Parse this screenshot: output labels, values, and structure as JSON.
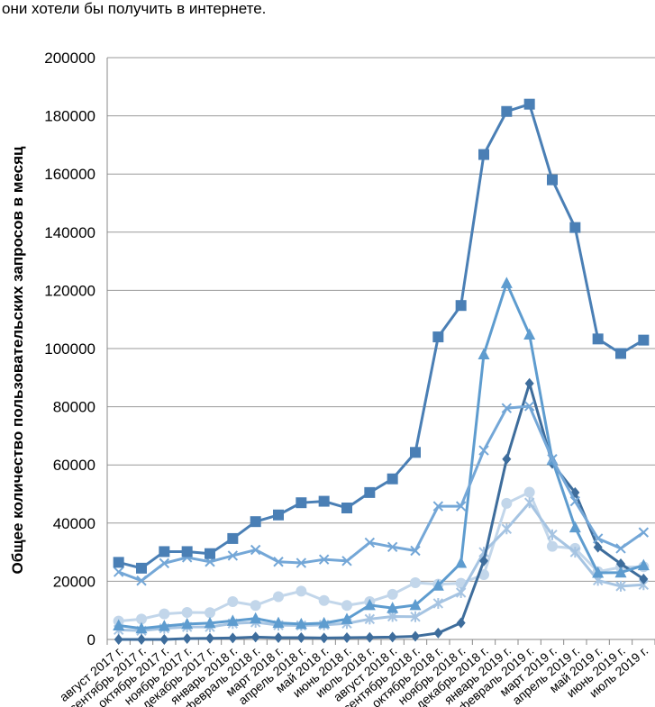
{
  "intro_text": "они хотели бы получить в интернете.",
  "chart_data": {
    "type": "line",
    "ylabel": "Общее количество пользовательских запросов в месяц",
    "xlabel": "",
    "ylim": [
      0,
      200000
    ],
    "yticks": [
      "0",
      "20000",
      "40000",
      "60000",
      "80000",
      "100000",
      "120000",
      "140000",
      "160000",
      "180000",
      "200000"
    ],
    "grid": "horizontal",
    "legend": "none",
    "categories": [
      "август 2017 г.",
      "сентябрь 2017 г.",
      "октябрь 2017 г.",
      "ноябрь 2017 г.",
      "декабрь 2017 г.",
      "январь 2018 г.",
      "февраль 2018 г.",
      "март 2018 г.",
      "апрель 2018 г.",
      "май 2018 г.",
      "июнь 2018 г.",
      "июль 2018 г.",
      "август 2018 г.",
      "сентябрь 2018 г.",
      "октябрь 2018 г.",
      "ноябрь 2018 г.",
      "декабрь 2018 г.",
      "январь 2019 г.",
      "февраль 2019 г.",
      "март 2019 г.",
      "апрель 2019 г.",
      "май 2019 г.",
      "июнь 2019 г.",
      "июль 2019 г."
    ],
    "series": [
      {
        "marker": "square",
        "color": "#4a7fb5",
        "values": [
          26500,
          24500,
          30200,
          30200,
          29500,
          34700,
          40500,
          42800,
          47000,
          47500,
          45200,
          50500,
          55200,
          64300,
          104000,
          114800,
          166700,
          181500,
          184000,
          158000,
          141600,
          103300,
          98300,
          102900
        ]
      },
      {
        "marker": "triangle",
        "color": "#5e9ccf",
        "values": [
          4800,
          3800,
          4600,
          5300,
          5600,
          6400,
          7200,
          5700,
          5300,
          5600,
          7000,
          11800,
          10800,
          11800,
          18500,
          26300,
          98000,
          122500,
          104800,
          61700,
          38500,
          22900,
          23000,
          25500
        ]
      },
      {
        "marker": "x",
        "color": "#74a7d7",
        "values": [
          23200,
          20200,
          26200,
          28200,
          26700,
          28800,
          30800,
          26700,
          26300,
          27500,
          27000,
          33300,
          31800,
          30500,
          45800,
          45800,
          65000,
          79500,
          80200,
          62000,
          47500,
          34700,
          31300,
          36800
        ]
      },
      {
        "marker": "diamond",
        "color": "#3e6d9c",
        "values": [
          0,
          0,
          0,
          300,
          400,
          500,
          800,
          600,
          600,
          500,
          600,
          700,
          800,
          1100,
          2200,
          5700,
          27000,
          62000,
          88000,
          60500,
          50500,
          31700,
          26000,
          20800
        ]
      },
      {
        "marker": "circle",
        "color": "#c2d6ea",
        "values": [
          6300,
          7000,
          8800,
          9300,
          9200,
          13000,
          11700,
          14700,
          16600,
          13400,
          11700,
          13000,
          15500,
          19500,
          19000,
          19300,
          22300,
          46800,
          50600,
          32000,
          31300,
          23300,
          24800,
          25000
        ]
      },
      {
        "marker": "star",
        "color": "#a6c4e2",
        "values": [
          3300,
          3000,
          3800,
          4300,
          4300,
          5500,
          5900,
          4900,
          4800,
          5000,
          5500,
          7000,
          7900,
          7800,
          12400,
          16100,
          30000,
          38000,
          47000,
          36000,
          30000,
          20300,
          18300,
          18800
        ]
      }
    ]
  }
}
